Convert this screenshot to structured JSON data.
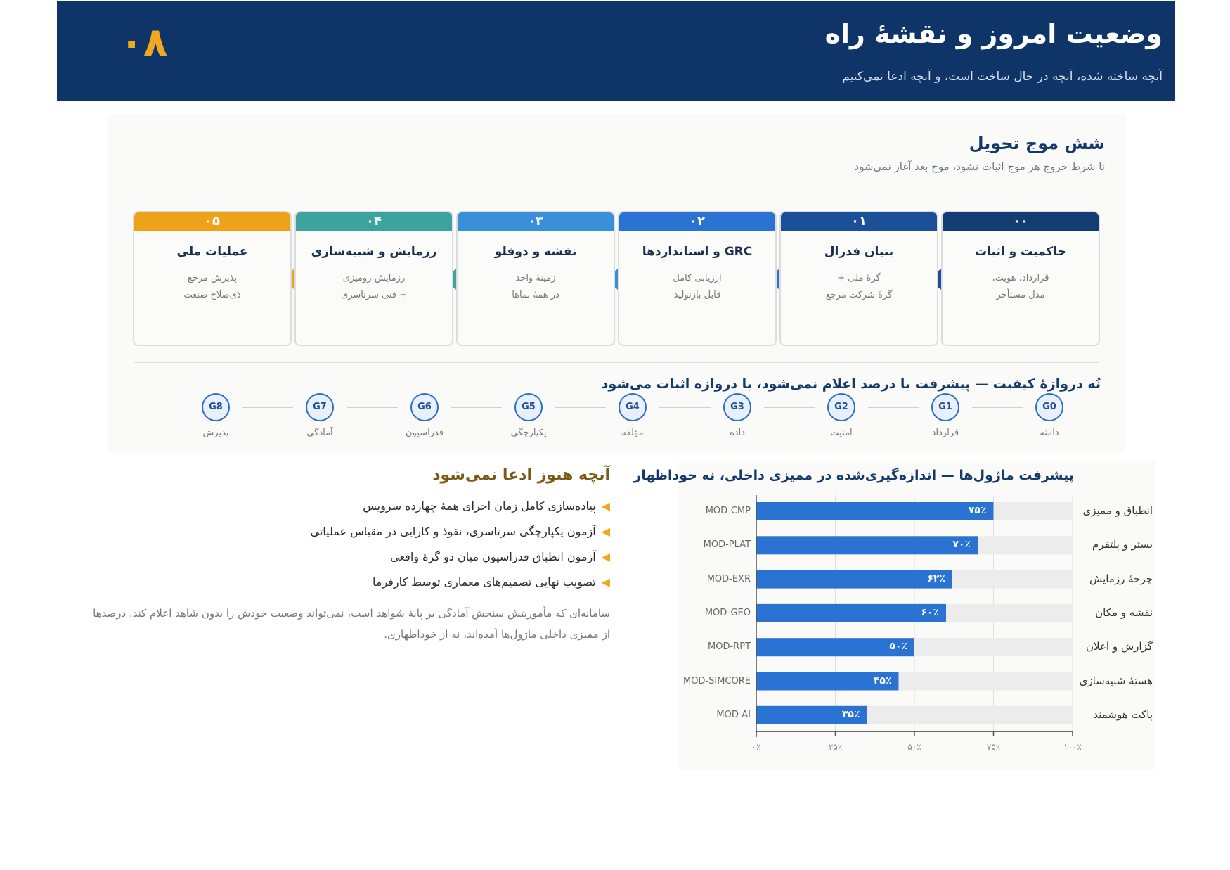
{
  "header": {
    "page_number": "۰۸",
    "title": "وضعیت امروز و نقشهٔ راه",
    "subtitle": "آنچه ساخته شده، آنچه در حال ساخت است، و آنچه ادعا نمی‌کنیم"
  },
  "waves": {
    "title": "شش موج تحویل",
    "subtitle": "تا شرط خروج هر موج اثبات نشود، موج بعد آغاز نمی‌شود",
    "cards": [
      {
        "num": "۰۰",
        "title": "حاکمیت و اثبات",
        "line1": "قرارداد، هویت،",
        "line2": "مدل مستأجر",
        "color": "#123c72"
      },
      {
        "num": "۰۱",
        "title": "بنیان فدرال",
        "line1": "گرهٔ ملی +",
        "line2": "گرهٔ شرکت مرجع",
        "color": "#1b4f96"
      },
      {
        "num": "۰۲",
        "title": "GRC و استانداردها",
        "line1": "ارزیابی کامل",
        "line2": "قابل بازتولید",
        "color": "#2b73d2"
      },
      {
        "num": "۰۳",
        "title": "نقشه و دوقلو",
        "line1": "زمینهٔ واحد",
        "line2": "در همهٔ نماها",
        "color": "#3a90d8"
      },
      {
        "num": "۰۴",
        "title": "رزمایش و شبیه‌سازی",
        "line1": "رزمایش رومیزی",
        "line2": "+ فنی سرتاسری",
        "color": "#3da39e"
      },
      {
        "num": "۰۵",
        "title": "عملیات ملی",
        "line1": "پذیرش مرجع",
        "line2": "ذی‌صلاح صنعت",
        "color": "#eea21a"
      }
    ]
  },
  "gates": {
    "title": "نُه دروازهٔ کیفیت — پیشرفت با درصد اعلام نمی‌شود، با دروازه اثبات می‌شود",
    "items": [
      {
        "code": "G0",
        "label": "دامنه"
      },
      {
        "code": "G1",
        "label": "قرارداد"
      },
      {
        "code": "G2",
        "label": "امنیت"
      },
      {
        "code": "G3",
        "label": "داده"
      },
      {
        "code": "G4",
        "label": "مؤلفه"
      },
      {
        "code": "G5",
        "label": "یکپارچگی"
      },
      {
        "code": "G6",
        "label": "فدراسیون"
      },
      {
        "code": "G7",
        "label": "آمادگی"
      },
      {
        "code": "G8",
        "label": "پذیرش"
      }
    ]
  },
  "not_claimed": {
    "title": "آنچه هنوز ادعا نمی‌شود",
    "items": [
      "پیاده‌سازی کامل زمان اجرای همهٔ چهارده سرویس",
      "آزمون یکپارچگی سرتاسری، نفوذ و کارایی در مقیاس عملیاتی",
      "آزمون انطباق فدراسیون میان دو گرهٔ واقعی",
      "تصویب نهایی تصمیم‌های معماری توسط کارفرما"
    ],
    "note": "سامانه‌ای که مأموریتش سنجش آمادگی بر پایهٔ شواهد است، نمی‌تواند وضعیت خودش را بدون شاهد اعلام کند. درصدها از ممیزی داخلی ماژول‌ها آمده‌اند، نه از خوداظهاری."
  },
  "chart_data": {
    "type": "bar",
    "orientation": "horizontal",
    "title": "پیشرفت ماژول‌ها — اندازه‌گیری‌شده در ممیزی داخلی، نه خوداظهار",
    "categories": [
      "MOD-CMP",
      "MOD-PLAT",
      "MOD-EXR",
      "MOD-GEO",
      "MOD-RPT",
      "MOD-SIMCORE",
      "MOD-AI"
    ],
    "names": [
      "انطباق و ممیزی",
      "بستر و پلتفرم",
      "چرخهٔ رزمایش",
      "نقشه و مکان",
      "گزارش و اعلان",
      "هستهٔ شبیه‌سازی",
      "پاکت هوشمند"
    ],
    "values": [
      75,
      70,
      62,
      60,
      50,
      45,
      35
    ],
    "value_labels": [
      "۷۵٪",
      "۷۰٪",
      "۶۲٪",
      "۶۰٪",
      "۵۰٪",
      "۴۵٪",
      "۳۵٪"
    ],
    "xlim": [
      0,
      100
    ],
    "ticks": [
      0,
      25,
      50,
      75,
      100
    ],
    "tick_labels": [
      "۰٪",
      "۲۵٪",
      "۵۰٪",
      "۷۵٪",
      "۱۰۰٪"
    ],
    "bar_color": "#2b73d2",
    "track_color": "#ececec",
    "grid": true
  }
}
